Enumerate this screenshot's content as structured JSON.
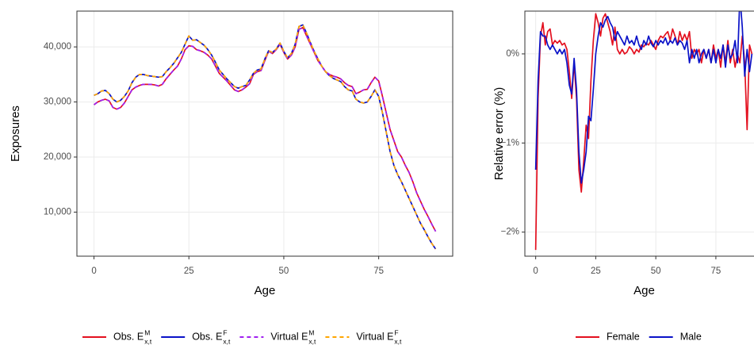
{
  "chart_data": [
    {
      "type": "line",
      "xlabel": "Age",
      "ylabel": "Exposures",
      "grid": true,
      "legend": "bottom",
      "xlim": [
        -4.5,
        94.5
      ],
      "ylim": [
        2000,
        46500
      ],
      "xticks": [
        0,
        25,
        50,
        75
      ],
      "yticks": [
        {
          "value": 10000,
          "label": "10,000"
        },
        {
          "value": 20000,
          "label": "20,000"
        },
        {
          "value": 30000,
          "label": "30,000"
        },
        {
          "value": 40000,
          "label": "40,000"
        }
      ],
      "x": [
        0,
        1,
        2,
        3,
        4,
        5,
        6,
        7,
        8,
        9,
        10,
        11,
        12,
        13,
        14,
        15,
        16,
        17,
        18,
        19,
        20,
        21,
        22,
        23,
        24,
        25,
        26,
        27,
        28,
        29,
        30,
        31,
        32,
        33,
        34,
        35,
        36,
        37,
        38,
        39,
        40,
        41,
        42,
        43,
        44,
        45,
        46,
        47,
        48,
        49,
        50,
        51,
        52,
        53,
        54,
        55,
        56,
        57,
        58,
        59,
        60,
        61,
        62,
        63,
        64,
        65,
        66,
        67,
        68,
        69,
        70,
        71,
        72,
        73,
        74,
        75,
        76,
        77,
        78,
        79,
        80,
        81,
        82,
        83,
        84,
        85,
        86,
        87,
        88,
        89,
        90
      ],
      "series": [
        {
          "name": "Obs. E",
          "sup": "M",
          "sub": "x,t",
          "color": "#e3101f",
          "linestyle": "solid",
          "values": [
            29500,
            30000,
            30300,
            30500,
            30200,
            29000,
            28700,
            29000,
            29800,
            31000,
            32200,
            32700,
            33000,
            33200,
            33200,
            33200,
            33100,
            32900,
            33200,
            34200,
            35000,
            35800,
            36500,
            37800,
            39500,
            40200,
            40100,
            39500,
            39300,
            39000,
            38500,
            37800,
            36500,
            35200,
            34500,
            33800,
            33000,
            32200,
            31900,
            32200,
            32700,
            33300,
            35000,
            35500,
            35700,
            37500,
            39200,
            38800,
            39500,
            40500,
            39000,
            37800,
            38500,
            40000,
            43200,
            43500,
            42000,
            40500,
            39000,
            37500,
            36500,
            35500,
            35000,
            34700,
            34500,
            34200,
            33500,
            33000,
            32800,
            31500,
            31800,
            32200,
            32300,
            33500,
            34500,
            33800,
            31000,
            28000,
            25000,
            23000,
            21000,
            20000,
            18500,
            17200,
            15500,
            13500,
            12000,
            10500,
            9200,
            7800,
            6500
          ]
        },
        {
          "name": "Obs. E",
          "sup": "F",
          "sub": "x,t",
          "color": "#0a12c8",
          "linestyle": "solid",
          "values": [
            31200,
            31500,
            32000,
            32100,
            31500,
            30500,
            30000,
            30300,
            31000,
            32000,
            33500,
            34500,
            35000,
            35000,
            34800,
            34700,
            34600,
            34500,
            34600,
            35500,
            36200,
            37000,
            38000,
            39000,
            40500,
            42000,
            41200,
            41300,
            40800,
            40300,
            39500,
            38500,
            37200,
            35800,
            35000,
            34200,
            33500,
            32800,
            32500,
            32800,
            33000,
            34000,
            35200,
            35800,
            36000,
            37800,
            39300,
            39000,
            39600,
            40700,
            39200,
            38000,
            38800,
            40500,
            43700,
            44000,
            42500,
            40800,
            39200,
            37800,
            36500,
            35500,
            34800,
            34300,
            34000,
            33700,
            32800,
            32200,
            32000,
            30500,
            30000,
            29800,
            30000,
            31000,
            32200,
            31000,
            28000,
            24500,
            21000,
            18500,
            16800,
            15500,
            14000,
            12500,
            11000,
            9500,
            8000,
            6800,
            5500,
            4300,
            3300
          ]
        },
        {
          "name": "Virtual E",
          "sup": "M",
          "sub": "x,t",
          "color": "#a020f0",
          "linestyle": "dashed",
          "values": [
            29500,
            30000,
            30300,
            30500,
            30200,
            29000,
            28700,
            29000,
            29800,
            31000,
            32200,
            32700,
            33000,
            33200,
            33200,
            33200,
            33100,
            32900,
            33200,
            34200,
            35000,
            35800,
            36500,
            37800,
            39500,
            40200,
            40100,
            39500,
            39300,
            39000,
            38500,
            37800,
            36500,
            35200,
            34500,
            33800,
            33000,
            32200,
            31900,
            32200,
            32700,
            33300,
            35000,
            35500,
            35700,
            37500,
            39200,
            38800,
            39500,
            40500,
            39000,
            37800,
            38500,
            40000,
            43200,
            43500,
            42000,
            40500,
            39000,
            37500,
            36500,
            35500,
            35000,
            34700,
            34500,
            34200,
            33500,
            33000,
            32800,
            31500,
            31800,
            32200,
            32300,
            33500,
            34500,
            33800,
            31000,
            28000,
            25000,
            23000,
            21000,
            20000,
            18500,
            17200,
            15500,
            13500,
            12000,
            10500,
            9200,
            7800,
            6500
          ]
        },
        {
          "name": "Virtual E",
          "sup": "F",
          "sub": "x,t",
          "color": "#ffa500",
          "linestyle": "dashed",
          "values": [
            31200,
            31500,
            32000,
            32100,
            31500,
            30500,
            30000,
            30300,
            31000,
            32000,
            33500,
            34500,
            35000,
            35000,
            34800,
            34700,
            34600,
            34500,
            34600,
            35500,
            36200,
            37000,
            38000,
            39000,
            40500,
            42000,
            41200,
            41300,
            40800,
            40300,
            39500,
            38500,
            37200,
            35800,
            35000,
            34200,
            33500,
            32800,
            32500,
            32800,
            33000,
            34000,
            35200,
            35800,
            36000,
            37800,
            39300,
            39000,
            39600,
            40700,
            39200,
            38000,
            38800,
            40500,
            43700,
            44000,
            42500,
            40800,
            39200,
            37800,
            36500,
            35500,
            34800,
            34300,
            34000,
            33700,
            32800,
            32200,
            32000,
            30500,
            30000,
            29800,
            30000,
            31000,
            32200,
            31000,
            28000,
            24500,
            21000,
            18500,
            16800,
            15500,
            14000,
            12500,
            11000,
            9500,
            8000,
            6800,
            5500,
            4300,
            3300
          ]
        }
      ]
    },
    {
      "type": "line",
      "xlabel": "Age",
      "ylabel": "Relative error (%)",
      "grid": true,
      "legend": "bottom",
      "xlim": [
        -4.5,
        94.5
      ],
      "ylim": [
        -2.27,
        0.48
      ],
      "xticks": [
        0,
        25,
        50,
        75
      ],
      "yticks": [
        {
          "value": -2,
          "label": "−2%"
        },
        {
          "value": -1,
          "label": "−1%"
        },
        {
          "value": 0,
          "label": "0%"
        }
      ],
      "x": [
        0,
        1,
        2,
        3,
        4,
        5,
        6,
        7,
        8,
        9,
        10,
        11,
        12,
        13,
        14,
        15,
        16,
        17,
        18,
        19,
        20,
        21,
        22,
        23,
        24,
        25,
        26,
        27,
        28,
        29,
        30,
        31,
        32,
        33,
        34,
        35,
        36,
        37,
        38,
        39,
        40,
        41,
        42,
        43,
        44,
        45,
        46,
        47,
        48,
        49,
        50,
        51,
        52,
        53,
        54,
        55,
        56,
        57,
        58,
        59,
        60,
        61,
        62,
        63,
        64,
        65,
        66,
        67,
        68,
        69,
        70,
        71,
        72,
        73,
        74,
        75,
        76,
        77,
        78,
        79,
        80,
        81,
        82,
        83,
        84,
        85,
        86,
        87,
        88,
        89,
        90
      ],
      "series": [
        {
          "name": "Female",
          "color": "#e3101f",
          "linestyle": "solid",
          "values": [
            -2.2,
            -0.5,
            0.2,
            0.35,
            0.1,
            0.25,
            0.28,
            0.1,
            0.15,
            0.12,
            0.15,
            0.1,
            0.12,
            0.05,
            -0.2,
            -0.5,
            -0.1,
            -0.5,
            -1.3,
            -1.55,
            -1.2,
            -0.8,
            -0.95,
            -0.3,
            0.15,
            0.45,
            0.35,
            0.2,
            0.4,
            0.45,
            0.35,
            0.25,
            0.1,
            0.3,
            0.05,
            0.0,
            0.05,
            0.0,
            0.02,
            0.08,
            0.05,
            0.0,
            0.05,
            0.02,
            0.1,
            0.08,
            0.12,
            0.1,
            0.15,
            0.1,
            0.05,
            0.15,
            0.2,
            0.18,
            0.22,
            0.25,
            0.15,
            0.28,
            0.2,
            0.1,
            0.25,
            0.15,
            0.22,
            0.15,
            0.25,
            -0.05,
            0.05,
            0.0,
            0.05,
            -0.1,
            0.05,
            -0.05,
            0.05,
            -0.1,
            0.1,
            -0.05,
            0.05,
            -0.15,
            0.1,
            -0.1,
            0.15,
            -0.1,
            0.05,
            -0.15,
            0.0,
            -0.1,
            0.2,
            -0.1,
            -0.85,
            0.1,
            0.0
          ]
        },
        {
          "name": "Male",
          "color": "#0a12c8",
          "linestyle": "solid",
          "values": [
            -1.3,
            -0.3,
            0.25,
            0.2,
            0.2,
            0.1,
            0.05,
            0.1,
            0.05,
            0.0,
            0.05,
            0.0,
            0.05,
            -0.1,
            -0.35,
            -0.45,
            -0.05,
            -0.4,
            -1.1,
            -1.45,
            -1.3,
            -1.1,
            -0.7,
            -0.75,
            -0.4,
            0.0,
            0.2,
            0.35,
            0.3,
            0.38,
            0.42,
            0.35,
            0.3,
            0.15,
            0.25,
            0.2,
            0.15,
            0.1,
            0.2,
            0.12,
            0.15,
            0.1,
            0.2,
            0.1,
            0.05,
            0.15,
            0.1,
            0.2,
            0.12,
            0.08,
            0.15,
            0.1,
            0.15,
            0.12,
            0.18,
            0.1,
            0.15,
            0.12,
            0.18,
            0.1,
            0.15,
            0.12,
            0.05,
            0.15,
            -0.1,
            0.05,
            -0.05,
            0.05,
            -0.1,
            0.0,
            0.05,
            -0.05,
            0.05,
            -0.1,
            0.05,
            -0.1,
            0.05,
            -0.05,
            0.1,
            -0.15,
            0.1,
            -0.05,
            0.0,
            0.15,
            -0.1,
            0.65,
            0.3,
            -0.25,
            0.05,
            -0.2,
            0.0
          ]
        }
      ]
    }
  ]
}
